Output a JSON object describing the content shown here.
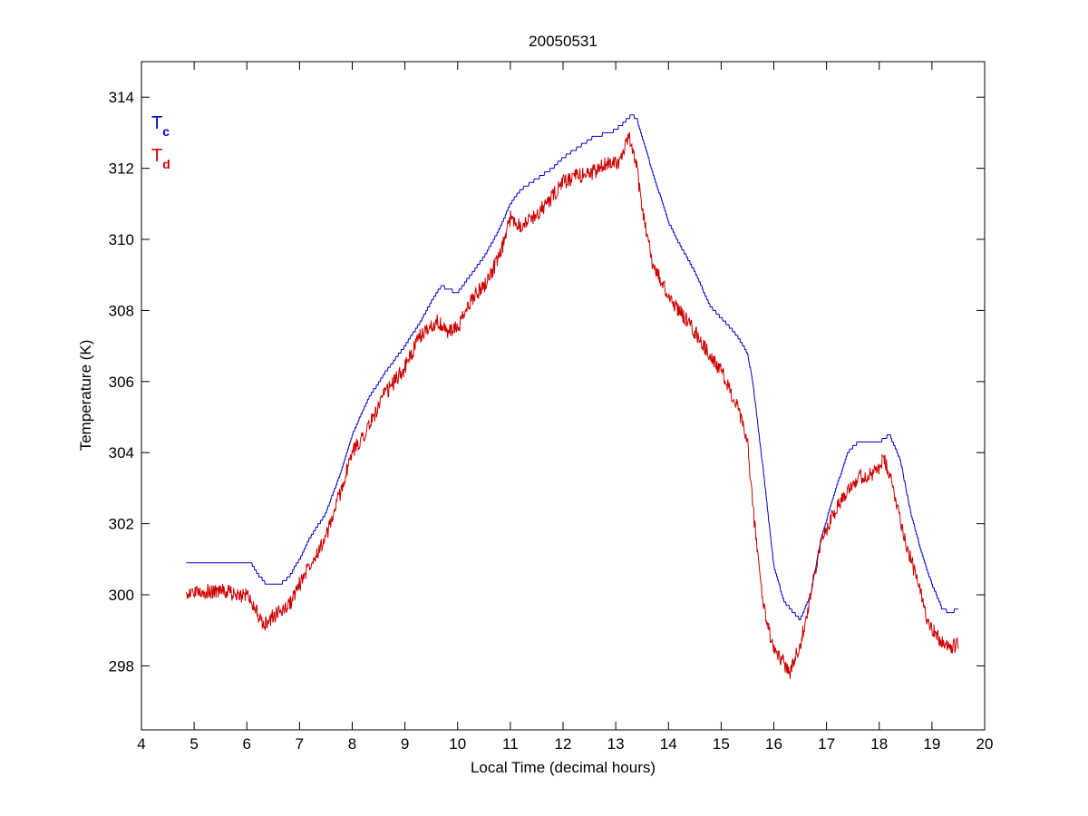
{
  "chart_data": {
    "type": "line",
    "title": "20050531",
    "xlabel": "Local Time (decimal hours)",
    "ylabel": "Temperature (K)",
    "xlim": [
      4,
      20
    ],
    "ylim": [
      296.2,
      315
    ],
    "xticks": [
      4,
      5,
      6,
      7,
      8,
      9,
      10,
      11,
      12,
      13,
      14,
      15,
      16,
      17,
      18,
      19,
      20
    ],
    "yticks": [
      298,
      300,
      302,
      304,
      306,
      308,
      310,
      312,
      314
    ],
    "grid": false,
    "legend": {
      "placement": "top-left",
      "entries": [
        {
          "main": "T",
          "sub": "c",
          "color": "#0000cc"
        },
        {
          "main": "T",
          "sub": "d",
          "color": "#cc0000"
        }
      ]
    },
    "series": [
      {
        "name": "Tc",
        "color": "#0000cc",
        "noise": 0,
        "x": [
          4.85,
          5.0,
          5.5,
          5.9,
          6.0,
          6.1,
          6.2,
          6.4,
          6.6,
          6.8,
          7.0,
          7.2,
          7.5,
          7.8,
          8.0,
          8.3,
          8.6,
          9.0,
          9.3,
          9.6,
          9.7,
          9.8,
          10.0,
          10.2,
          10.5,
          10.8,
          11.0,
          11.2,
          11.5,
          11.8,
          12.0,
          12.3,
          12.6,
          12.9,
          13.1,
          13.3,
          13.4,
          13.5,
          13.7,
          14.0,
          14.2,
          14.5,
          14.8,
          15.0,
          15.3,
          15.5,
          15.6,
          15.8,
          16.0,
          16.2,
          16.5,
          16.7,
          16.9,
          17.1,
          17.4,
          17.6,
          17.9,
          18.0,
          18.2,
          18.4,
          18.6,
          18.8,
          19.0,
          19.2,
          19.35,
          19.5
        ],
        "y": [
          300.9,
          300.9,
          300.9,
          300.9,
          300.9,
          300.85,
          300.6,
          300.25,
          300.25,
          300.5,
          301.0,
          301.6,
          302.3,
          303.5,
          304.5,
          305.5,
          306.2,
          307.0,
          307.7,
          308.5,
          308.7,
          308.6,
          308.5,
          308.9,
          309.5,
          310.3,
          311.0,
          311.4,
          311.7,
          312.0,
          312.3,
          312.6,
          312.9,
          313.0,
          313.2,
          313.5,
          313.4,
          312.9,
          311.9,
          310.5,
          309.9,
          309.1,
          308.1,
          307.8,
          307.3,
          306.8,
          306.0,
          303.5,
          300.8,
          299.8,
          299.3,
          300.0,
          301.6,
          302.6,
          304.0,
          304.3,
          304.3,
          304.3,
          304.5,
          303.8,
          302.3,
          301.2,
          300.3,
          299.6,
          299.5,
          299.6
        ]
      },
      {
        "name": "Td",
        "color": "#cc0000",
        "noise": 0.22,
        "x": [
          4.85,
          5.0,
          5.5,
          5.9,
          6.0,
          6.1,
          6.2,
          6.3,
          6.5,
          6.8,
          7.0,
          7.2,
          7.5,
          7.8,
          8.0,
          8.3,
          8.6,
          9.0,
          9.3,
          9.6,
          9.8,
          10.0,
          10.3,
          10.5,
          10.8,
          11.0,
          11.2,
          11.5,
          11.8,
          12.0,
          12.3,
          12.6,
          12.9,
          13.1,
          13.25,
          13.4,
          13.5,
          13.7,
          14.0,
          14.2,
          14.5,
          14.8,
          15.0,
          15.3,
          15.5,
          15.6,
          15.8,
          16.0,
          16.1,
          16.3,
          16.5,
          16.7,
          16.9,
          17.1,
          17.4,
          17.6,
          17.9,
          18.1,
          18.3,
          18.5,
          18.7,
          18.9,
          19.1,
          19.3,
          19.5
        ],
        "y": [
          300.0,
          300.1,
          300.1,
          300.0,
          300.0,
          299.8,
          299.5,
          299.1,
          299.4,
          299.7,
          300.3,
          300.9,
          301.6,
          303.0,
          304.0,
          304.7,
          305.6,
          306.4,
          307.3,
          307.7,
          307.4,
          307.5,
          308.4,
          308.7,
          309.5,
          310.6,
          310.4,
          310.7,
          311.2,
          311.6,
          311.8,
          311.9,
          312.2,
          312.2,
          312.9,
          312.0,
          310.9,
          309.3,
          308.4,
          308.0,
          307.4,
          306.7,
          306.3,
          305.3,
          304.3,
          302.5,
          299.7,
          298.4,
          298.3,
          297.8,
          298.6,
          300.0,
          301.5,
          302.2,
          303.0,
          303.3,
          303.4,
          303.8,
          302.8,
          301.5,
          300.5,
          299.4,
          298.8,
          298.5,
          298.6
        ]
      }
    ]
  }
}
